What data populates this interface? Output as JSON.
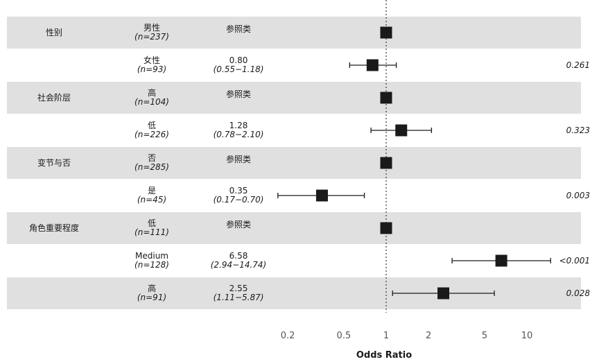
{
  "chart_data": {
    "type": "forest",
    "xlabel": "Odds Ratio",
    "xscale": "log",
    "xlim": [
      0.13,
      20
    ],
    "reference_line": 1,
    "x_ticks": [
      0.2,
      0.5,
      1,
      2,
      5,
      10
    ],
    "x_tick_labels": [
      "0.2",
      "0.5",
      "1",
      "2",
      "5",
      "10"
    ],
    "groups": [
      {
        "name": "性别",
        "rows": [
          {
            "level": "男性",
            "n": "(n=237)",
            "or_text": "参照类",
            "ci_text": "",
            "or": 1,
            "ci": null,
            "p": ""
          },
          {
            "level": "女性",
            "n": "(n=93)",
            "or_text": "0.80",
            "ci_text": "(0.55−1.18)",
            "or": 0.8,
            "ci": [
              0.55,
              1.18
            ],
            "p": "0.261"
          }
        ]
      },
      {
        "name": "社会阶层",
        "rows": [
          {
            "level": "高",
            "n": "(n=104)",
            "or_text": "参照类",
            "ci_text": "",
            "or": 1,
            "ci": null,
            "p": ""
          },
          {
            "level": "低",
            "n": "(n=226)",
            "or_text": "1.28",
            "ci_text": "(0.78−2.10)",
            "or": 1.28,
            "ci": [
              0.78,
              2.1
            ],
            "p": "0.323"
          }
        ]
      },
      {
        "name": "变节与否",
        "rows": [
          {
            "level": "否",
            "n": "(n=285)",
            "or_text": "参照类",
            "ci_text": "",
            "or": 1,
            "ci": null,
            "p": ""
          },
          {
            "level": "是",
            "n": "(n=45)",
            "or_text": "0.35",
            "ci_text": "(0.17−0.70)",
            "or": 0.35,
            "ci": [
              0.17,
              0.7
            ],
            "p": "0.003"
          }
        ]
      },
      {
        "name": "角色重要程度",
        "rows": [
          {
            "level": "低",
            "n": "(n=111)",
            "or_text": "参照类",
            "ci_text": "",
            "or": 1,
            "ci": null,
            "p": ""
          },
          {
            "level": "Medium",
            "n": "(n=128)",
            "or_text": "6.58",
            "ci_text": "(2.94−14.74)",
            "or": 6.58,
            "ci": [
              2.94,
              14.74
            ],
            "p": "<0.001"
          },
          {
            "level": "高",
            "n": "(n=91)",
            "or_text": "2.55",
            "ci_text": "(1.11−5.87)",
            "or": 2.55,
            "ci": [
              1.11,
              5.87
            ],
            "p": "0.028"
          }
        ]
      }
    ],
    "colors": {
      "band": "#e0e0e0",
      "marker": "#1a1a1a",
      "line": "#1a1a1a",
      "axis_text": "#555555"
    }
  }
}
